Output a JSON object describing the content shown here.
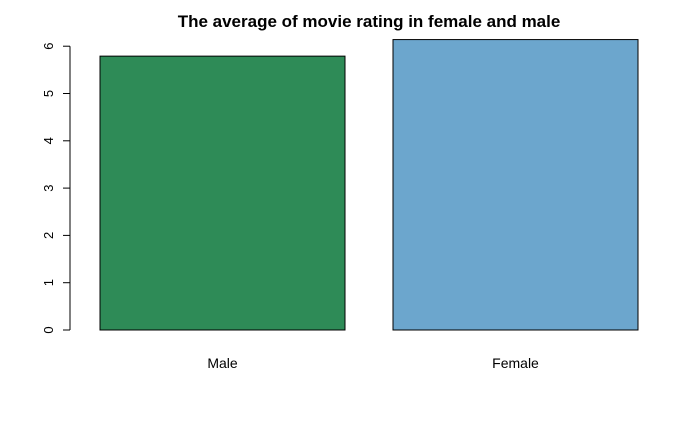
{
  "chart_data": {
    "type": "bar",
    "title": "The average of movie rating in female and male",
    "xlabel": "",
    "ylabel": "",
    "categories": [
      "Male",
      "Female"
    ],
    "values": [
      5.79,
      6.14
    ],
    "colors": [
      "#2E8B57",
      "#6CA6CD"
    ],
    "ylim": [
      0,
      6
    ],
    "yticks": [
      0,
      1,
      2,
      3,
      4,
      5,
      6
    ],
    "grid": false,
    "legend": "none"
  }
}
